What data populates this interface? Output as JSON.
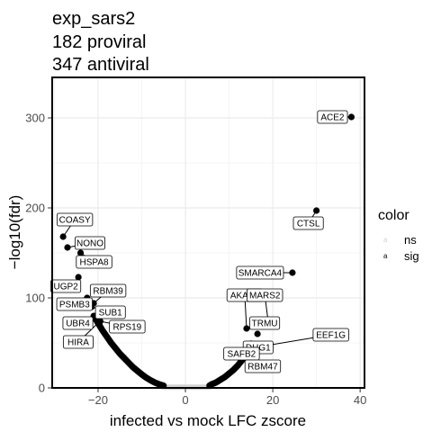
{
  "chart_data": {
    "type": "scatter",
    "title_lines": [
      "exp_sars2",
      "182 proviral",
      "347 antiviral"
    ],
    "xlabel": "infected vs mock LFC zscore",
    "ylabel": "−log10(fdr)",
    "xlim": [
      -30.5,
      41
    ],
    "ylim": [
      0,
      345
    ],
    "x_ticks": [
      -20,
      0,
      20,
      40
    ],
    "x_tick_labels": [
      "−20",
      "0",
      "20",
      "40"
    ],
    "y_ticks": [
      0,
      100,
      200,
      300
    ],
    "y_tick_labels": [
      "0",
      "100",
      "200",
      "300"
    ],
    "grid": true,
    "legend": {
      "title": "color",
      "placement": "right",
      "items": [
        {
          "label": "ns",
          "key": "a",
          "color": "#d3d3d3"
        },
        {
          "label": "sig",
          "key": "a",
          "color": "#000000"
        }
      ]
    },
    "colors": {
      "ns": "#d3d3d3",
      "sig": "#000000"
    },
    "ns_curve": {
      "x_min": -5,
      "x_max": 5.5
    },
    "sig_curve": {
      "left": [
        [
          -21,
          80
        ],
        [
          -20,
          72
        ],
        [
          -19,
          64
        ],
        [
          -18,
          57
        ],
        [
          -17,
          50
        ],
        [
          -16,
          44
        ],
        [
          -15,
          38
        ],
        [
          -14,
          33
        ],
        [
          -13,
          28
        ],
        [
          -12,
          23
        ],
        [
          -11,
          19
        ],
        [
          -10,
          15
        ],
        [
          -9,
          11.5
        ],
        [
          -8,
          8.5
        ],
        [
          -7,
          6
        ],
        [
          -6,
          4
        ],
        [
          -5,
          2.5
        ]
      ],
      "right": [
        [
          5.5,
          2.5
        ],
        [
          6,
          4
        ],
        [
          7,
          6
        ],
        [
          8,
          9
        ],
        [
          9,
          12
        ],
        [
          10,
          16
        ],
        [
          11,
          20
        ],
        [
          12,
          25
        ],
        [
          13,
          31
        ],
        [
          14,
          38
        ],
        [
          15,
          44
        ]
      ]
    },
    "labeled_points": [
      {
        "label": "ACE2",
        "x": 38,
        "y": 301
      },
      {
        "label": "CTSL",
        "x": 30,
        "y": 197
      },
      {
        "label": "COASY",
        "x": -28,
        "y": 168
      },
      {
        "label": "NONO",
        "x": -27,
        "y": 156
      },
      {
        "label": "HSPA8",
        "x": -24,
        "y": 150
      },
      {
        "label": "UGP2",
        "x": -24.5,
        "y": 123
      },
      {
        "label": "SMARCA4",
        "x": 24.5,
        "y": 128
      },
      {
        "label": "PSMB3",
        "x": -22.5,
        "y": 100
      },
      {
        "label": "RBM39",
        "x": -21,
        "y": 94
      },
      {
        "label": "SUB1",
        "x": -21.5,
        "y": 90
      },
      {
        "label": "UBR4",
        "x": -20.5,
        "y": 80
      },
      {
        "label": "RPS19",
        "x": -19.5,
        "y": 74
      },
      {
        "label": "HIRA",
        "x": -20,
        "y": 72
      },
      {
        "label": "AKAP8",
        "x": 14,
        "y": 66
      },
      {
        "label": "MARS2",
        "x": 19,
        "y": 72
      },
      {
        "label": "TRMU",
        "x": 16.5,
        "y": 60
      },
      {
        "label": "DHG1",
        "x": 15,
        "y": 49
      },
      {
        "label": "EEF1G",
        "x": 16,
        "y": 45
      },
      {
        "label": "SAFB2",
        "x": 14.5,
        "y": 44
      },
      {
        "label": "RBM47",
        "x": 14,
        "y": 38
      }
    ]
  }
}
